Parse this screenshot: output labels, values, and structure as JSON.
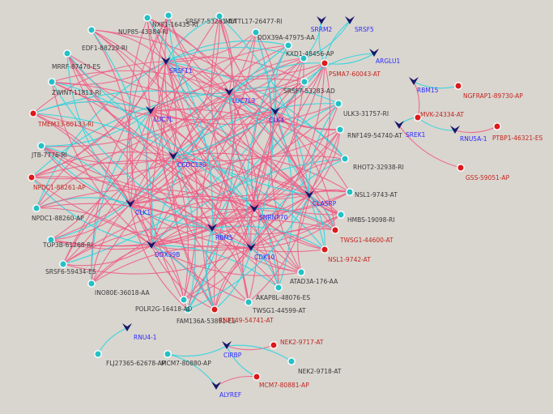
{
  "colors": {
    "background": "#d9d5cf",
    "activation_edge": "#ee5b84",
    "repression_edge": "#2fd6df",
    "node_up": "#22c1c5",
    "node_down": "#dd1a1a",
    "regulator_node": "#17186b",
    "regulator_label": "#2c2cff",
    "event_label": "#3a3a3a",
    "event_label_down": "#c2271f"
  },
  "node_shapes": {
    "regulator": "v-arrowhead",
    "event": "circle"
  },
  "regulators": [
    "SRRM2",
    "SRSF5",
    "ARGLU1",
    "SRSF11",
    "LUC7L3",
    "LUC7L",
    "CLK4",
    "CCDC130",
    "CLK1",
    "DDX39B",
    "RBM5",
    "SNRNP70",
    "CLASRP",
    "CDK10",
    "RBM15",
    "RNU5A-1",
    "SREK1",
    "RNU4-1",
    "CIRBP",
    "ALYREF"
  ],
  "events_up": [
    "SRSF7-53281-AA",
    "METTL17-26477-RI",
    "NXF1-16435-RI",
    "NUP85-43384-RI",
    "DDX39A-47975-AA",
    "EDF1-88229-RI",
    "KXD1-48456-AP",
    "MRRF-87470-ES",
    "ZWINT-11813-RI",
    "SRSF7-53283-AD",
    "ULK3-31757-RI",
    "RNF149-54740-AT",
    "RHOT2-32938-RI",
    "JTB-7776-RI",
    "NSL1-9743-AT",
    "NPDC1-88260-AP",
    "HMBS-19098-RI",
    "TOP3B-61268-RI",
    "SRSF6-59434-ES",
    "ATAD3A-176-AA",
    "INO80E-36018-AA",
    "AKAP8L-48076-ES",
    "POLR2G-16418-AD",
    "TWSG1-44599-AT",
    "FAM136A-53891-ES",
    "FLJ27365-62678-AP",
    "MCM7-80880-AP",
    "NEK2-9718-AT"
  ],
  "events_down": [
    "PSMA7-60043-AT",
    "TMEM33-60133-RI",
    "NPDC1-88261-AP",
    "NGFRAP1-89730-AP",
    "MVK-24334-AT",
    "PTBP1-46321-ES",
    "GSS-59051-AP",
    "TWSG1-44600-AT",
    "NSL1-9742-AT",
    "RNF149-54741-AT",
    "NEK2-9717-AT",
    "MCM7-80881-AP"
  ]
}
